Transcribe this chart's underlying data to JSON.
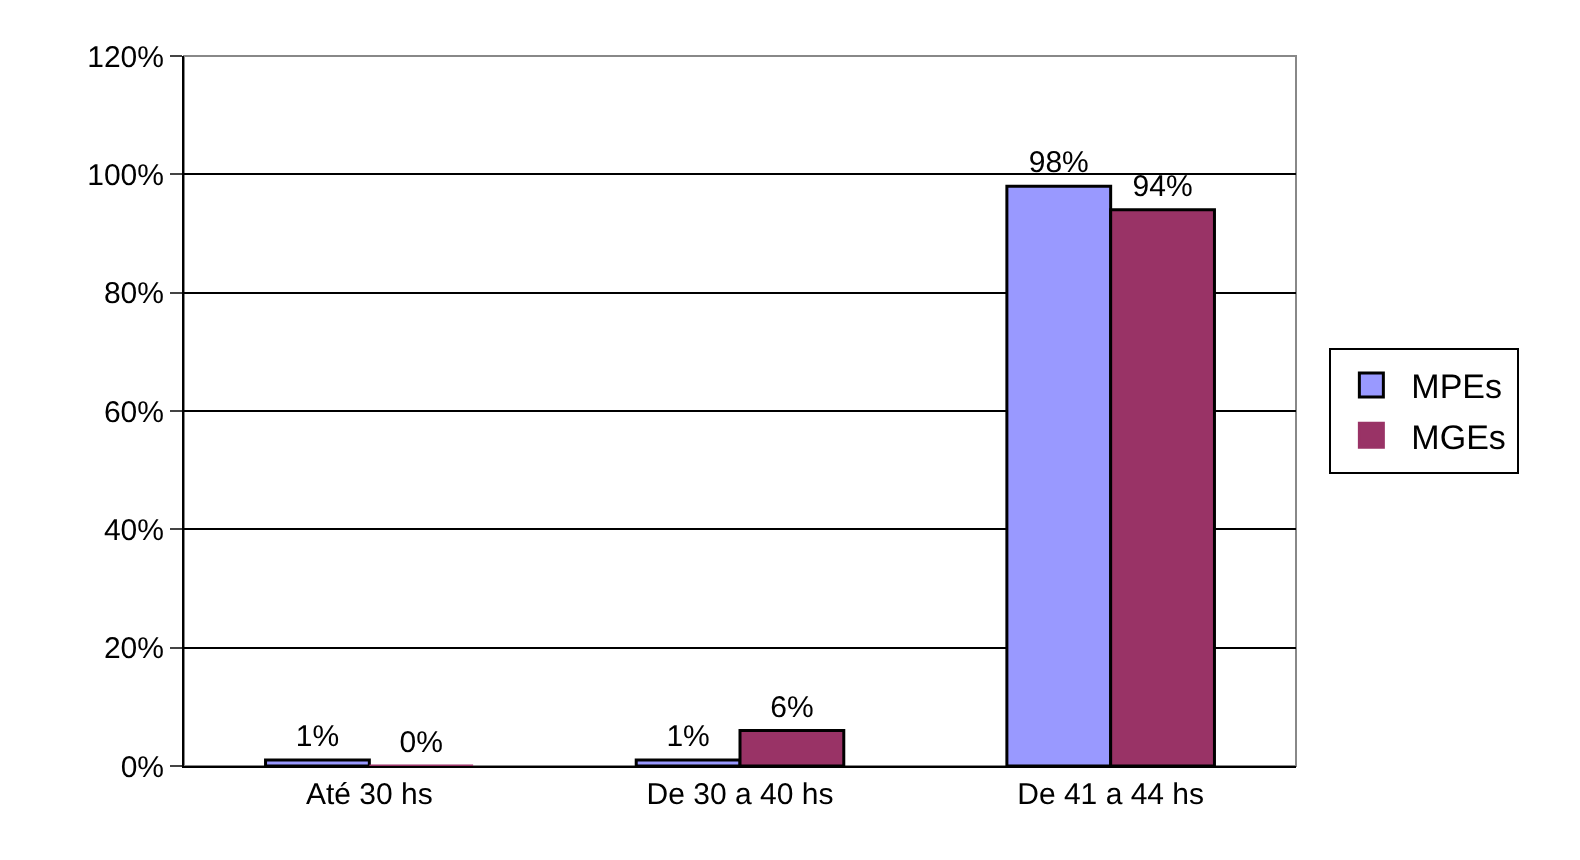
{
  "chart_data": {
    "type": "bar",
    "categories": [
      "Até 30 hs",
      "De 30 a 40 hs",
      "De 41 a 44 hs"
    ],
    "series": [
      {
        "name": "MPEs",
        "color": "#9999ff",
        "values": [
          1,
          1,
          98
        ],
        "value_labels": [
          "1%",
          "1%",
          "98%"
        ]
      },
      {
        "name": "MGEs",
        "color": "#993366",
        "values": [
          0,
          6,
          94
        ],
        "value_labels": [
          "0%",
          "6%",
          "94%"
        ]
      }
    ],
    "ylim": [
      0,
      120
    ],
    "yticks": [
      {
        "value": 0,
        "label": "0%"
      },
      {
        "value": 20,
        "label": "20%"
      },
      {
        "value": 40,
        "label": "40%"
      },
      {
        "value": 60,
        "label": "60%"
      },
      {
        "value": 80,
        "label": "80%"
      },
      {
        "value": 100,
        "label": "100%"
      },
      {
        "value": 120,
        "label": "120%"
      }
    ],
    "grid": "y",
    "legend": "right"
  }
}
